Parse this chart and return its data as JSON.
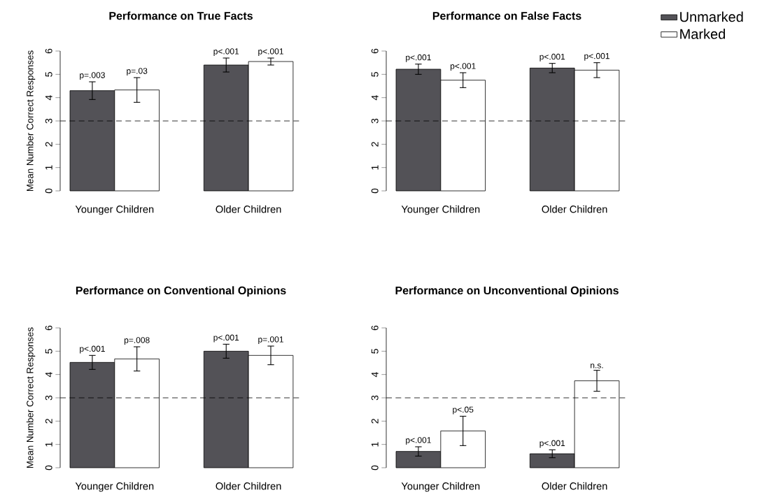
{
  "chart_data": [
    {
      "type": "bar",
      "title": "Performance on True Facts",
      "ylabel": "Mean Number Correct Responses",
      "categories": [
        "Younger Children",
        "Older Children"
      ],
      "series": [
        {
          "color": "#535257",
          "values": [
            4.3,
            5.4
          ],
          "errors": [
            0.38,
            0.3
          ]
        },
        {
          "color": "#ffffff",
          "values": [
            4.33,
            5.55
          ],
          "errors": [
            0.53,
            0.15
          ]
        }
      ],
      "ylim": [
        0,
        6
      ],
      "yticks": [
        0,
        1,
        2,
        3,
        4,
        5,
        6
      ],
      "ref_lines": [
        {
          "axis": "y",
          "value": 3,
          "line_style": "dashed"
        }
      ],
      "annotations": [
        "p=.003",
        "p<.001",
        "p=.03",
        "p<.001"
      ]
    },
    {
      "type": "bar",
      "title": "Performance on False Facts",
      "categories": [
        "Younger Children",
        "Older Children"
      ],
      "series": [
        {
          "name": "Unmarked",
          "color": "#535257",
          "values": [
            5.22,
            5.27
          ],
          "errors": [
            0.22,
            0.2
          ]
        },
        {
          "name": "Marked",
          "color": "#ffffff",
          "values": [
            4.75,
            5.18
          ],
          "errors": [
            0.32,
            0.32
          ]
        }
      ],
      "ylim": [
        0,
        6
      ],
      "yticks": [
        0,
        1,
        2,
        3,
        4,
        5,
        6
      ],
      "ref_lines": [
        {
          "axis": "y",
          "value": 3,
          "line_style": "dashed"
        }
      ],
      "legend": "top right",
      "annotations": [
        "p<.001",
        "p<.001",
        "p<.001",
        "p<.001"
      ]
    },
    {
      "type": "bar",
      "title": "Performance on Conventional Opinions",
      "ylabel": "Mean Number Correct Responses",
      "categories": [
        "Younger Children",
        "Older Children"
      ],
      "series": [
        {
          "color": "#535257",
          "values": [
            4.52,
            5.0
          ],
          "errors": [
            0.3,
            0.3
          ]
        },
        {
          "color": "#ffffff",
          "values": [
            4.67,
            4.82
          ],
          "errors": [
            0.52,
            0.4
          ]
        }
      ],
      "ylim": [
        0,
        6
      ],
      "yticks": [
        0,
        1,
        2,
        3,
        4,
        5,
        6
      ],
      "ref_lines": [
        {
          "axis": "y",
          "value": 3,
          "line_style": "dashed"
        }
      ],
      "annotations": [
        "p<.001",
        "p<.001",
        "p=.008",
        "p=.001"
      ]
    },
    {
      "type": "bar",
      "title": "Performance on Unconventional Opinions",
      "categories": [
        "Younger Children",
        "Older Children"
      ],
      "series": [
        {
          "color": "#535257",
          "values": [
            0.7,
            0.6
          ],
          "errors": [
            0.2,
            0.17
          ]
        },
        {
          "color": "#ffffff",
          "values": [
            1.58,
            3.73
          ],
          "errors": [
            0.63,
            0.45
          ]
        }
      ],
      "ylim": [
        0,
        6
      ],
      "yticks": [
        0,
        1,
        2,
        3,
        4,
        5,
        6
      ],
      "ref_lines": [
        {
          "axis": "y",
          "value": 3,
          "line_style": "dashed"
        }
      ],
      "annotations": [
        "p<.001",
        "p<.001",
        "p<.05",
        "n.s."
      ]
    }
  ]
}
